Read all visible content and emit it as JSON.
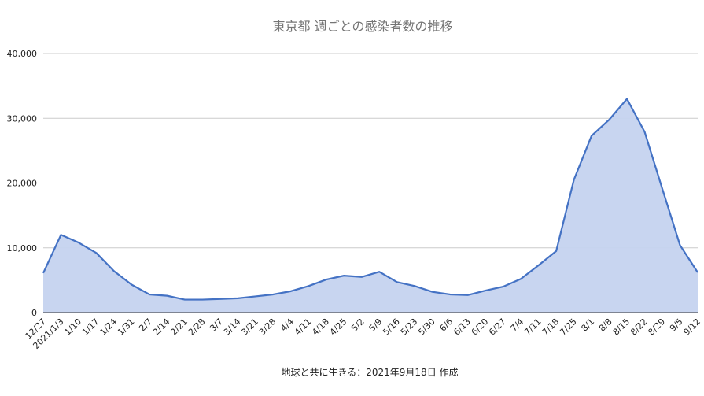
{
  "chart_data": {
    "type": "area",
    "title": "東京都 週ごとの感染者数の推移",
    "caption": "地球と共に生きる：2021年9月18日 作成",
    "xlabel": "",
    "ylabel": "",
    "ylim": [
      0,
      40000
    ],
    "y_ticks": [
      {
        "value": 0,
        "label": "0"
      },
      {
        "value": 10000,
        "label": "10,000"
      },
      {
        "value": 20000,
        "label": "20,000"
      },
      {
        "value": 30000,
        "label": "30,000"
      },
      {
        "value": 40000,
        "label": "40,000"
      }
    ],
    "grid": true,
    "legend": "none",
    "colors": {
      "line": "#4472c4",
      "fill": "#c5d3ef"
    },
    "categories": [
      "12/27",
      "2021/1/3",
      "1/10",
      "1/17",
      "1/24",
      "1/31",
      "2/7",
      "2/14",
      "2/21",
      "2/28",
      "3/7",
      "3/14",
      "3/21",
      "3/28",
      "4/4",
      "4/11",
      "4/18",
      "4/25",
      "5/2",
      "5/9",
      "5/16",
      "5/23",
      "5/30",
      "6/6",
      "6/13",
      "6/20",
      "6/27",
      "7/4",
      "7/11",
      "7/18",
      "7/25",
      "8/1",
      "8/8",
      "8/15",
      "8/22",
      "8/29",
      "9/5",
      "9/12"
    ],
    "values": [
      6100,
      12000,
      10800,
      9200,
      6400,
      4300,
      2800,
      2600,
      2000,
      2000,
      2100,
      2200,
      2500,
      2800,
      3300,
      4100,
      5100,
      5700,
      5500,
      6300,
      4700,
      4100,
      3200,
      2800,
      2700,
      3400,
      4000,
      5200,
      7300,
      9500,
      20500,
      27300,
      29800,
      33000,
      27900,
      19100,
      10400,
      6200
    ]
  }
}
